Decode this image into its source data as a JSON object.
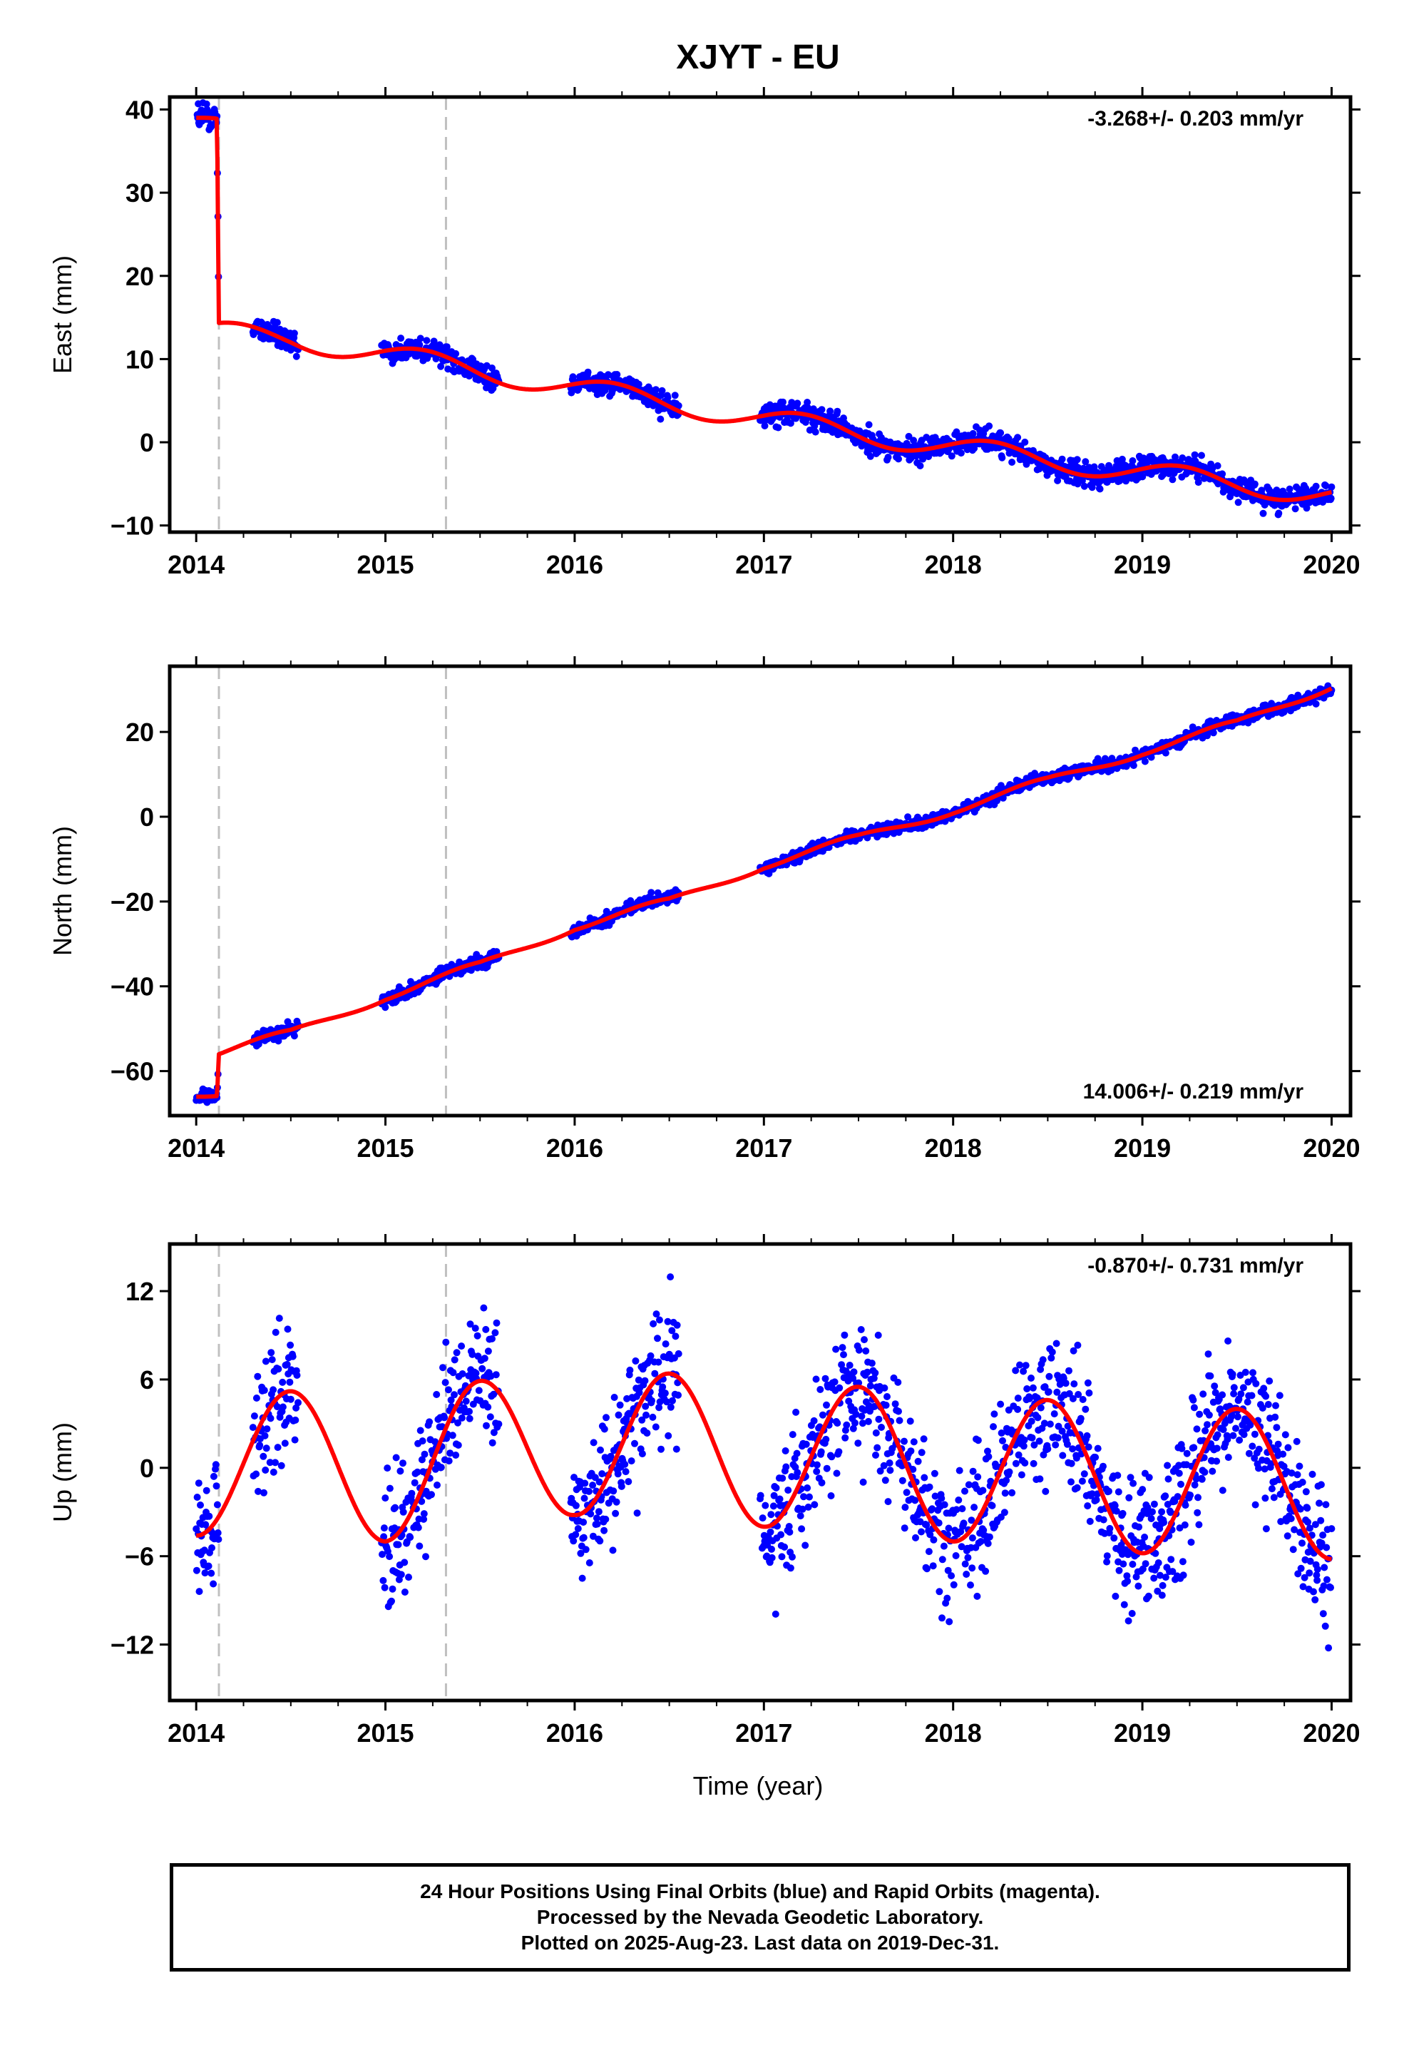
{
  "title": "XJYT - EU",
  "xlabel": "Time (year)",
  "caption": [
    "24 Hour Positions Using Final Orbits (blue) and Rapid Orbits (magenta).",
    "Processed by the Nevada Geodetic Laboratory.",
    "Plotted on 2025-Aug-23. Last data on 2019-Dec-31."
  ],
  "colors": {
    "points": "#0000ff",
    "model": "#ff0000",
    "event_line": "#c0c0c0",
    "frame": "#000000"
  },
  "chart_data": [
    {
      "type": "scatter",
      "component": "east",
      "ylabel": "East (mm)",
      "rate_text": "-3.268+/- 0.203 mm/yr",
      "rate_position": "top-right",
      "xlim": [
        2013.86,
        2020.1
      ],
      "ylim": [
        -10.8,
        41.5
      ],
      "xticks": [
        2014,
        2015,
        2016,
        2017,
        2018,
        2019,
        2020
      ],
      "yticks": [
        -10,
        0,
        10,
        20,
        30,
        40
      ],
      "xtick_labels": [
        "2014",
        "2015",
        "2016",
        "2017",
        "2018",
        "2019",
        "2020"
      ],
      "ytick_labels": [
        "−10",
        "0",
        "10",
        "20",
        "30",
        "40"
      ],
      "event_lines": [
        2014.12,
        2015.32
      ],
      "obs_segments": [
        [
          2014.0,
          2014.12,
          1.2
        ],
        [
          2014.3,
          2014.54,
          1.0
        ],
        [
          2014.98,
          2015.6,
          1.0
        ],
        [
          2015.98,
          2016.55,
          1.0
        ],
        [
          2016.98,
          2020.0,
          1.0
        ]
      ],
      "model": {
        "linear": [
          {
            "x": 2014.0,
            "y": 38.6
          },
          {
            "x": 2014.11,
            "y": 37.8
          },
          {
            "x": 2014.12,
            "y": 13.2
          },
          {
            "x": 2014.5,
            "y": 12.4
          },
          {
            "x": 2015.0,
            "y": 10.6
          },
          {
            "x": 2016.0,
            "y": 6.6
          },
          {
            "x": 2017.0,
            "y": 2.8
          },
          {
            "x": 2018.0,
            "y": -0.6
          },
          {
            "x": 2019.0,
            "y": -3.6
          },
          {
            "x": 2020.0,
            "y": -6.4
          }
        ],
        "annual_amp": 1.3,
        "annual_phase": 0.95
      }
    },
    {
      "type": "scatter",
      "component": "north",
      "ylabel": "North (mm)",
      "rate_text": "14.006+/- 0.219 mm/yr",
      "rate_position": "bottom-right",
      "xlim": [
        2013.86,
        2020.1
      ],
      "ylim": [
        -70.5,
        35.5
      ],
      "xticks": [
        2014,
        2015,
        2016,
        2017,
        2018,
        2019,
        2020
      ],
      "yticks": [
        -60,
        -40,
        -20,
        0,
        20
      ],
      "xtick_labels": [
        "2014",
        "2015",
        "2016",
        "2017",
        "2018",
        "2019",
        "2020"
      ],
      "ytick_labels": [
        "−60",
        "−40",
        "−20",
        "0",
        "20"
      ],
      "event_lines": [
        2014.12,
        2015.32
      ],
      "obs_segments": [
        [
          2014.0,
          2014.12,
          1.0
        ],
        [
          2014.3,
          2014.54,
          1.2
        ],
        [
          2014.98,
          2015.6,
          1.0
        ],
        [
          2015.98,
          2016.55,
          1.0
        ],
        [
          2016.98,
          2020.0,
          1.0
        ]
      ],
      "model": {
        "linear": [
          {
            "x": 2014.0,
            "y": -64.8
          },
          {
            "x": 2014.11,
            "y": -65.2
          },
          {
            "x": 2014.12,
            "y": -55.4
          },
          {
            "x": 2014.5,
            "y": -51.5
          },
          {
            "x": 2015.0,
            "y": -42.0
          },
          {
            "x": 2015.5,
            "y": -35.5
          },
          {
            "x": 2016.0,
            "y": -25.5
          },
          {
            "x": 2016.5,
            "y": -20.5
          },
          {
            "x": 2017.0,
            "y": -11.0
          },
          {
            "x": 2017.5,
            "y": -5.5
          },
          {
            "x": 2018.0,
            "y": 2.0
          },
          {
            "x": 2018.5,
            "y": 8.0
          },
          {
            "x": 2019.0,
            "y": 15.8
          },
          {
            "x": 2019.5,
            "y": 21.5
          },
          {
            "x": 2020.0,
            "y": 31.5
          }
        ],
        "annual_amp": 1.3,
        "annual_phase": 0.2
      }
    },
    {
      "type": "scatter",
      "component": "up",
      "ylabel": "Up (mm)",
      "rate_text": "-0.870+/- 0.731 mm/yr",
      "rate_position": "top-right",
      "xlim": [
        2013.86,
        2020.1
      ],
      "ylim": [
        -15.8,
        15.2
      ],
      "xticks": [
        2014,
        2015,
        2016,
        2017,
        2018,
        2019,
        2020
      ],
      "yticks": [
        -12,
        -6,
        0,
        6,
        12
      ],
      "xtick_labels": [
        "2014",
        "2015",
        "2016",
        "2017",
        "2018",
        "2019",
        "2020"
      ],
      "ytick_labels": [
        "−12",
        "−6",
        "0",
        "6",
        "12"
      ],
      "event_lines": [
        2014.12,
        2015.32
      ],
      "obs_segments": [
        [
          2014.0,
          2014.12,
          3.0
        ],
        [
          2014.3,
          2014.54,
          3.0
        ],
        [
          2014.98,
          2015.6,
          3.0
        ],
        [
          2015.98,
          2016.55,
          3.0
        ],
        [
          2016.98,
          2020.0,
          3.2
        ]
      ],
      "model": {
        "linear": [
          {
            "x": 2014.0,
            "y": 0.4
          },
          {
            "x": 2015.0,
            "y": 0.0
          },
          {
            "x": 2016.0,
            "y": 1.8
          },
          {
            "x": 2017.0,
            "y": 1.0
          },
          {
            "x": 2018.0,
            "y": 0.0
          },
          {
            "x": 2019.0,
            "y": -0.8
          },
          {
            "x": 2020.0,
            "y": -1.2
          }
        ],
        "annual_amp": 5.0,
        "annual_phase": 0.25
      }
    }
  ]
}
